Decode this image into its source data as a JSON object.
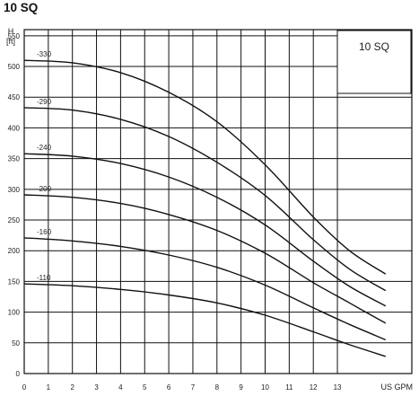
{
  "page": {
    "title": "10 SQ"
  },
  "chart_data": {
    "type": "line",
    "badge": "10 SQ",
    "ylabel_top": "H",
    "ylabel_unit": "[ft]",
    "xlabel": "US GPM",
    "xlim": [
      0,
      15.3
    ],
    "ylim": [
      0,
      560
    ],
    "x_ticks": [
      0,
      1,
      2,
      3,
      4,
      5,
      6,
      7,
      8,
      9,
      10,
      11,
      12,
      13
    ],
    "y_ticks": [
      0,
      50,
      100,
      150,
      200,
      250,
      300,
      350,
      400,
      450,
      500,
      550
    ],
    "x_tick_labels": [
      "0",
      "1",
      "2",
      "3",
      "4",
      "5",
      "6",
      "7",
      "8",
      "9",
      "10",
      "11",
      "12",
      "13"
    ],
    "y_tick_labels": [
      "0",
      "50",
      "100",
      "150",
      "200",
      "250",
      "300",
      "350",
      "400",
      "450",
      "500",
      "550"
    ],
    "grid": true,
    "series": [
      {
        "name": "-330",
        "x": [
          0,
          2,
          4,
          6,
          8,
          10,
          12,
          13.5,
          15
        ],
        "y": [
          510,
          506,
          490,
          458,
          410,
          340,
          255,
          200,
          162
        ]
      },
      {
        "name": "-290",
        "x": [
          0,
          2,
          4,
          6,
          8,
          10,
          12,
          13.5,
          15
        ],
        "y": [
          433,
          429,
          414,
          386,
          344,
          290,
          218,
          170,
          135
        ]
      },
      {
        "name": "-240",
        "x": [
          0,
          2,
          4,
          6,
          8,
          10,
          12,
          13.5,
          15
        ],
        "y": [
          358,
          354,
          342,
          320,
          287,
          242,
          183,
          142,
          110
        ]
      },
      {
        "name": "-200",
        "x": [
          0,
          2,
          4,
          6,
          8,
          10,
          12,
          13.5,
          15
        ],
        "y": [
          291,
          287,
          277,
          259,
          233,
          196,
          148,
          115,
          82
        ]
      },
      {
        "name": "-160",
        "x": [
          0,
          2,
          4,
          6,
          8,
          10,
          12,
          13.5,
          15
        ],
        "y": [
          221,
          216,
          207,
          193,
          173,
          144,
          107,
          80,
          55
        ]
      },
      {
        "name": "-110",
        "x": [
          0,
          2,
          4,
          6,
          8,
          10,
          12,
          13.5,
          15
        ],
        "y": [
          146,
          143,
          137,
          128,
          115,
          95,
          68,
          47,
          28
        ]
      }
    ]
  }
}
